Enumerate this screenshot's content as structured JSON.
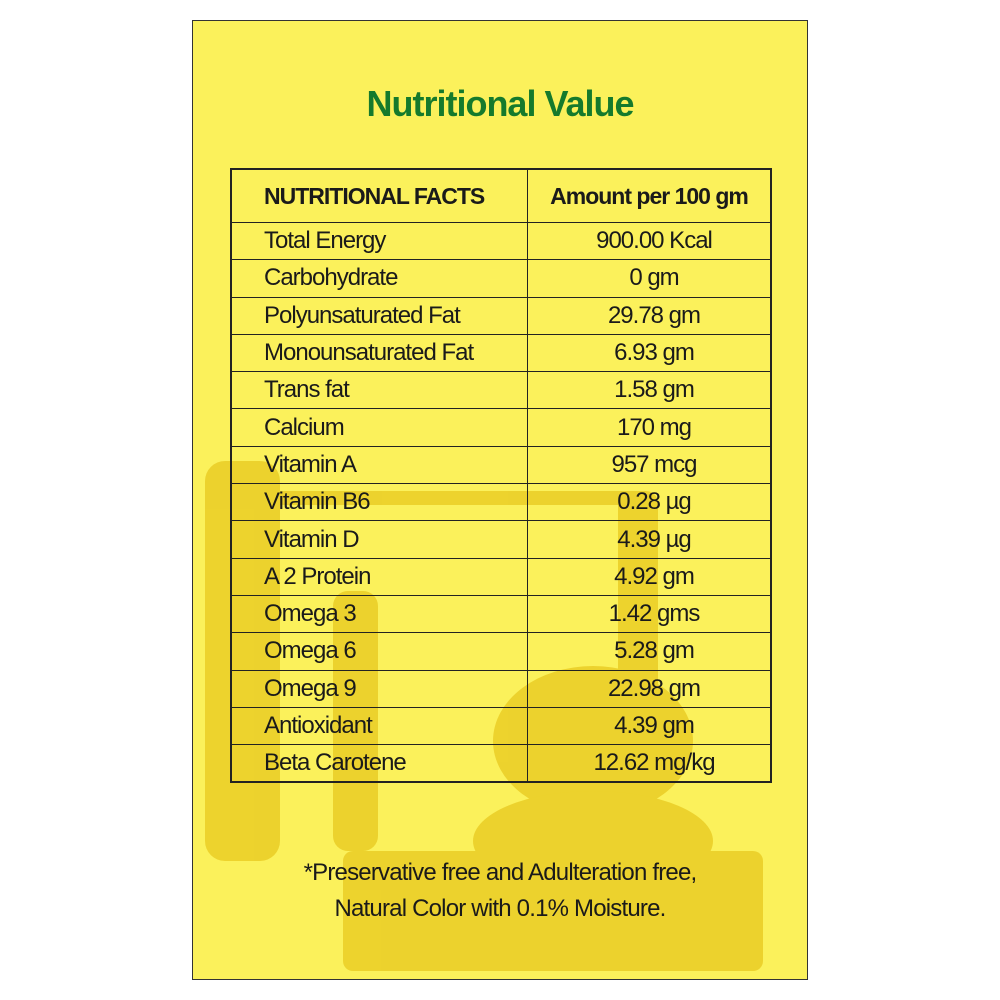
{
  "header": {
    "title": "Nutritional Value"
  },
  "table": {
    "columns": [
      "NUTRITIONAL FACTS",
      "Amount per 100 gm"
    ],
    "rows": [
      [
        "Total Energy",
        "900.00 Kcal"
      ],
      [
        "Carbohydrate",
        "0 gm"
      ],
      [
        "Polyunsaturated Fat",
        "29.78 gm"
      ],
      [
        "Monounsaturated Fat",
        "6.93 gm"
      ],
      [
        "Trans fat",
        "1.58 gm"
      ],
      [
        "Calcium",
        "170 mg"
      ],
      [
        "Vitamin A",
        "957 mcg"
      ],
      [
        "Vitamin B6",
        "0.28 µg"
      ],
      [
        "Vitamin D",
        "4.39 µg"
      ],
      [
        "A 2 Protein",
        "4.92 gm"
      ],
      [
        "Omega 3",
        "1.42 gms"
      ],
      [
        "Omega 6",
        "5.28 gm"
      ],
      [
        "Omega 9",
        "22.98 gm"
      ],
      [
        "Antioxidant",
        "4.39 gm"
      ],
      [
        "Beta Carotene",
        "12.62 mg/kg"
      ]
    ]
  },
  "footer": {
    "lines": [
      "*Preservative free and Adulteration free,",
      "Natural Color with 0.1% Moisture."
    ]
  }
}
